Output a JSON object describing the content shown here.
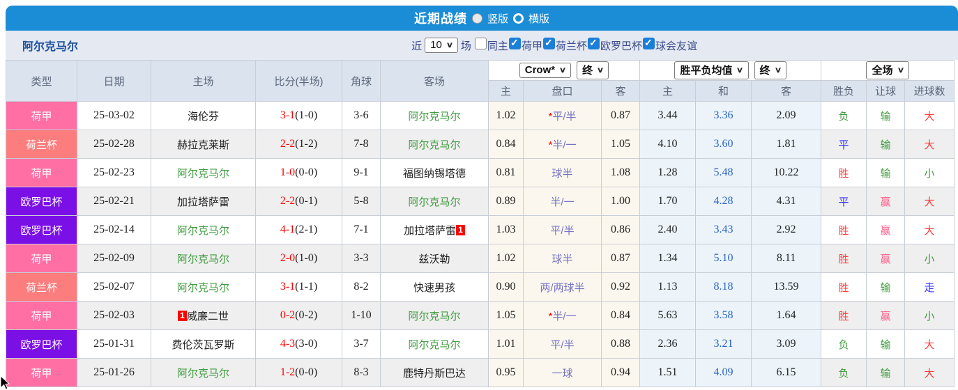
{
  "titlebar": {
    "title": "近期战绩",
    "vertical_label": "竖版",
    "horizontal_label": "横版",
    "bar_color": "#1b8cd6"
  },
  "filterbar": {
    "team": "阿尔克马尔",
    "near_label": "近",
    "count_value": "10",
    "games_label": "场",
    "checkboxes": [
      {
        "label": "同主",
        "checked": false
      },
      {
        "label": "荷甲",
        "checked": true
      },
      {
        "label": "荷兰杯",
        "checked": true
      },
      {
        "label": "欧罗巴杯",
        "checked": true
      },
      {
        "label": "球会友谊",
        "checked": true
      }
    ]
  },
  "table": {
    "left_headers": [
      "类型",
      "日期",
      "主场",
      "比分(半场)",
      "角球",
      "客场"
    ],
    "dropdowns": {
      "bookmaker": "Crow*",
      "bookmaker_state": "终",
      "odds_type": "胜平负均值",
      "odds_state": "终",
      "scope": "全场"
    },
    "sub_headers": [
      "主",
      "盘口",
      "客",
      "主",
      "和",
      "客",
      "胜负",
      "让球",
      "进球数"
    ],
    "type_colors": {
      "荷甲": "#ff6fa4",
      "荷兰杯": "#fb7d7d",
      "欧罗巴杯": "#7b10e6"
    },
    "rows": [
      {
        "type": "荷甲",
        "type_bg": "#ff6fa4",
        "date": "25-03-02",
        "home": "海伦芬",
        "home_az": false,
        "home_badge": "",
        "score": "3-1",
        "half": "(1-0)",
        "corner": "3-6",
        "away": "阿尔克马尔",
        "away_az": true,
        "away_badge": "",
        "crow_home": "1.02",
        "hcp_star": true,
        "handicap": "平/半",
        "crow_away": "0.87",
        "odds_home": "3.44",
        "odds_draw": "3.36",
        "odds_away": "2.09",
        "result": "负",
        "result_color": "green",
        "give": "输",
        "give_color": "green",
        "goals": "大",
        "goals_color": "red"
      },
      {
        "type": "荷兰杯",
        "type_bg": "#fb7d7d",
        "date": "25-02-28",
        "home": "赫拉克莱斯",
        "home_az": false,
        "home_badge": "",
        "score": "2-2",
        "half": "(1-2)",
        "corner": "7-8",
        "away": "阿尔克马尔",
        "away_az": true,
        "away_badge": "",
        "crow_home": "0.84",
        "hcp_star": true,
        "handicap": "半/一",
        "crow_away": "1.05",
        "odds_home": "4.10",
        "odds_draw": "3.60",
        "odds_away": "1.81",
        "result": "平",
        "result_color": "blue",
        "give": "输",
        "give_color": "green",
        "goals": "大",
        "goals_color": "red"
      },
      {
        "type": "荷甲",
        "type_bg": "#ff6fa4",
        "date": "25-02-23",
        "home": "阿尔克马尔",
        "home_az": true,
        "home_badge": "",
        "score": "1-0",
        "half": "(0-0)",
        "corner": "9-1",
        "away": "福图纳锡塔德",
        "away_az": false,
        "away_badge": "",
        "crow_home": "0.81",
        "hcp_star": false,
        "handicap": "球半",
        "crow_away": "1.08",
        "odds_home": "1.28",
        "odds_draw": "5.48",
        "odds_away": "10.22",
        "result": "胜",
        "result_color": "red",
        "give": "输",
        "give_color": "green",
        "goals": "小",
        "goals_color": "green"
      },
      {
        "type": "欧罗巴杯",
        "type_bg": "#7b10e6",
        "date": "25-02-21",
        "home": "加拉塔萨雷",
        "home_az": false,
        "home_badge": "",
        "score": "2-2",
        "half": "(0-1)",
        "corner": "5-8",
        "away": "阿尔克马尔",
        "away_az": true,
        "away_badge": "",
        "crow_home": "0.89",
        "hcp_star": false,
        "handicap": "半/一",
        "crow_away": "1.00",
        "odds_home": "1.70",
        "odds_draw": "4.28",
        "odds_away": "4.31",
        "result": "平",
        "result_color": "blue",
        "give": "赢",
        "give_color": "pink",
        "goals": "大",
        "goals_color": "red"
      },
      {
        "type": "欧罗巴杯",
        "type_bg": "#7b10e6",
        "date": "25-02-14",
        "home": "阿尔克马尔",
        "home_az": true,
        "home_badge": "",
        "score": "4-1",
        "half": "(2-1)",
        "corner": "7-1",
        "away": "加拉塔萨雷",
        "away_az": false,
        "away_badge": "1",
        "crow_home": "1.03",
        "hcp_star": false,
        "handicap": "平/半",
        "crow_away": "0.86",
        "odds_home": "2.40",
        "odds_draw": "3.43",
        "odds_away": "2.92",
        "result": "胜",
        "result_color": "red",
        "give": "赢",
        "give_color": "pink",
        "goals": "大",
        "goals_color": "red"
      },
      {
        "type": "荷甲",
        "type_bg": "#ff6fa4",
        "date": "25-02-09",
        "home": "阿尔克马尔",
        "home_az": true,
        "home_badge": "",
        "score": "2-0",
        "half": "(1-0)",
        "corner": "3-3",
        "away": "兹沃勒",
        "away_az": false,
        "away_badge": "",
        "crow_home": "1.02",
        "hcp_star": false,
        "handicap": "球半",
        "crow_away": "0.87",
        "odds_home": "1.34",
        "odds_draw": "5.10",
        "odds_away": "8.11",
        "result": "胜",
        "result_color": "red",
        "give": "赢",
        "give_color": "pink",
        "goals": "小",
        "goals_color": "green"
      },
      {
        "type": "荷兰杯",
        "type_bg": "#fb7d7d",
        "date": "25-02-07",
        "home": "阿尔克马尔",
        "home_az": true,
        "home_badge": "",
        "score": "3-1",
        "half": "(1-1)",
        "corner": "8-2",
        "away": "快速男孩",
        "away_az": false,
        "away_badge": "",
        "crow_home": "0.90",
        "hcp_star": false,
        "handicap": "两/两球半",
        "crow_away": "0.92",
        "odds_home": "1.13",
        "odds_draw": "8.18",
        "odds_away": "13.59",
        "result": "胜",
        "result_color": "red",
        "give": "输",
        "give_color": "green",
        "goals": "走",
        "goals_color": "blue"
      },
      {
        "type": "荷甲",
        "type_bg": "#ff6fa4",
        "date": "25-02-03",
        "home": "威廉二世",
        "home_az": false,
        "home_badge": "1",
        "score": "0-2",
        "half": "(0-2)",
        "corner": "1-10",
        "away": "阿尔克马尔",
        "away_az": true,
        "away_badge": "",
        "crow_home": "1.05",
        "hcp_star": true,
        "handicap": "半/一",
        "crow_away": "0.84",
        "odds_home": "5.63",
        "odds_draw": "3.58",
        "odds_away": "1.64",
        "result": "胜",
        "result_color": "red",
        "give": "赢",
        "give_color": "pink",
        "goals": "小",
        "goals_color": "green"
      },
      {
        "type": "欧罗巴杯",
        "type_bg": "#7b10e6",
        "date": "25-01-31",
        "home": "费伦茨瓦罗斯",
        "home_az": false,
        "home_badge": "",
        "score": "4-3",
        "half": "(3-0)",
        "corner": "3-7",
        "away": "阿尔克马尔",
        "away_az": true,
        "away_badge": "",
        "crow_home": "1.01",
        "hcp_star": false,
        "handicap": "平/半",
        "crow_away": "0.88",
        "odds_home": "2.36",
        "odds_draw": "3.21",
        "odds_away": "3.09",
        "result": "负",
        "result_color": "green",
        "give": "输",
        "give_color": "green",
        "goals": "大",
        "goals_color": "red"
      },
      {
        "type": "荷甲",
        "type_bg": "#ff6fa4",
        "date": "25-01-26",
        "home": "阿尔克马尔",
        "home_az": true,
        "home_badge": "",
        "score": "1-2",
        "half": "(0-0)",
        "corner": "8-3",
        "away": "鹿特丹斯巴达",
        "away_az": false,
        "away_badge": "",
        "crow_home": "0.95",
        "hcp_star": false,
        "handicap": "一球",
        "crow_away": "0.94",
        "odds_home": "1.51",
        "odds_draw": "4.09",
        "odds_away": "6.15",
        "result": "负",
        "result_color": "green",
        "give": "输",
        "give_color": "green",
        "goals": "大",
        "goals_color": "red"
      }
    ]
  }
}
